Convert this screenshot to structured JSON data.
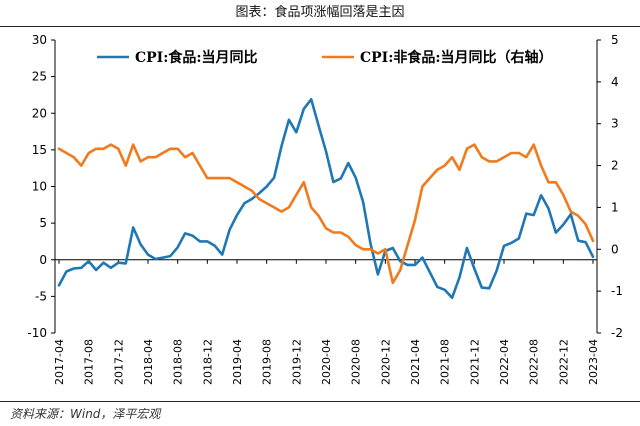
{
  "title": "图表：食品项涨幅回落是主因",
  "source": "资料来源：Wind，泽平宏观",
  "chart_data": {
    "type": "line",
    "x": [
      "2017-04",
      "2017-05",
      "2017-06",
      "2017-07",
      "2017-08",
      "2017-09",
      "2017-10",
      "2017-11",
      "2017-12",
      "2018-01",
      "2018-02",
      "2018-03",
      "2018-04",
      "2018-05",
      "2018-06",
      "2018-07",
      "2018-08",
      "2018-09",
      "2018-10",
      "2018-11",
      "2018-12",
      "2019-01",
      "2019-02",
      "2019-03",
      "2019-04",
      "2019-05",
      "2019-06",
      "2019-07",
      "2019-08",
      "2019-09",
      "2019-10",
      "2019-11",
      "2019-12",
      "2020-01",
      "2020-02",
      "2020-03",
      "2020-04",
      "2020-05",
      "2020-06",
      "2020-07",
      "2020-08",
      "2020-09",
      "2020-10",
      "2020-11",
      "2020-12",
      "2021-01",
      "2021-02",
      "2021-03",
      "2021-04",
      "2021-05",
      "2021-06",
      "2021-07",
      "2021-08",
      "2021-09",
      "2021-10",
      "2021-11",
      "2021-12",
      "2022-01",
      "2022-02",
      "2022-03",
      "2022-04",
      "2022-05",
      "2022-06",
      "2022-07",
      "2022-08",
      "2022-09",
      "2022-10",
      "2022-11",
      "2022-12",
      "2023-01",
      "2023-02",
      "2023-03",
      "2023-04"
    ],
    "x_tick_labels": [
      "2017-04",
      "2017-08",
      "2017-12",
      "2018-04",
      "2018-08",
      "2018-12",
      "2019-04",
      "2019-08",
      "2019-12",
      "2020-04",
      "2020-08",
      "2020-12",
      "2021-04",
      "2021-08",
      "2021-12",
      "2022-04",
      "2022-08",
      "2022-12",
      "2023-04"
    ],
    "series": [
      {
        "name": "CPI:食品:当月同比",
        "axis": "left",
        "color": "#1f77b4",
        "values": [
          -3.5,
          -1.6,
          -1.2,
          -1.1,
          -0.2,
          -1.4,
          -0.4,
          -1.1,
          -0.4,
          -0.5,
          4.4,
          2.1,
          0.7,
          0.1,
          0.3,
          0.5,
          1.7,
          3.6,
          3.3,
          2.5,
          2.5,
          1.9,
          0.7,
          4.1,
          6.1,
          7.7,
          8.3,
          9.1,
          10.0,
          11.2,
          15.5,
          19.1,
          17.4,
          20.6,
          21.9,
          18.3,
          14.8,
          10.6,
          11.1,
          13.2,
          11.2,
          7.9,
          2.2,
          -2.0,
          1.2,
          1.6,
          -0.2,
          -0.7,
          -0.7,
          0.3,
          -1.7,
          -3.7,
          -4.1,
          -5.2,
          -2.4,
          1.6,
          -1.2,
          -3.8,
          -3.9,
          -1.5,
          1.9,
          2.3,
          2.9,
          6.3,
          6.1,
          8.8,
          7.0,
          3.7,
          4.8,
          6.2,
          2.6,
          2.4,
          0.4
        ]
      },
      {
        "name": "CPI:非食品:当月同比（右轴）",
        "axis": "right",
        "color": "#f07a1c",
        "values": [
          2.4,
          2.3,
          2.2,
          2.0,
          2.3,
          2.4,
          2.4,
          2.5,
          2.4,
          2.0,
          2.5,
          2.1,
          2.2,
          2.2,
          2.3,
          2.4,
          2.4,
          2.2,
          2.3,
          2.0,
          1.7,
          1.7,
          1.7,
          1.7,
          1.6,
          1.5,
          1.4,
          1.2,
          1.1,
          1.0,
          0.9,
          1.0,
          1.3,
          1.6,
          1.0,
          0.8,
          0.5,
          0.4,
          0.4,
          0.3,
          0.1,
          0.0,
          0.0,
          -0.1,
          0.0,
          -0.8,
          -0.5,
          0.1,
          0.7,
          1.5,
          1.7,
          1.9,
          2.0,
          2.2,
          1.9,
          2.4,
          2.5,
          2.2,
          2.1,
          2.1,
          2.2,
          2.3,
          2.3,
          2.2,
          2.5,
          2.0,
          1.6,
          1.6,
          1.3,
          0.9,
          0.8,
          0.6,
          0.2
        ]
      }
    ],
    "left_axis": {
      "ylim": [
        -10,
        30
      ],
      "ticks": [
        -10,
        -5,
        0,
        5,
        10,
        15,
        20,
        25,
        30
      ]
    },
    "right_axis": {
      "ylim": [
        -2,
        5
      ],
      "ticks": [
        -2,
        -1,
        0,
        1,
        2,
        3,
        4,
        5
      ]
    },
    "legend_placement": "top",
    "grid": false
  }
}
